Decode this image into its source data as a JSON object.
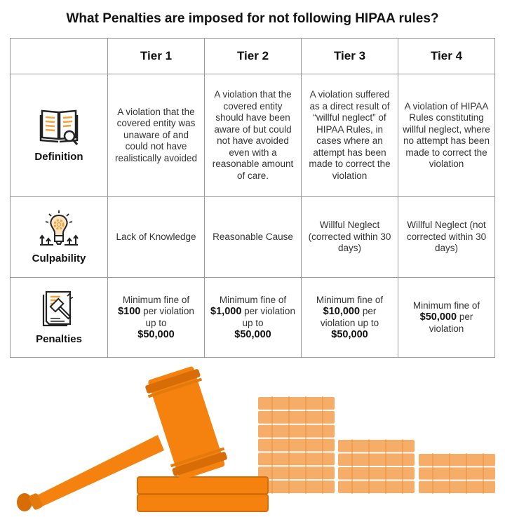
{
  "title": "What Penalties are imposed for not following HIPAA rules?",
  "columns": [
    "Tier 1",
    "Tier 2",
    "Tier 3",
    "Tier 4"
  ],
  "rows": {
    "definition": {
      "label": "Definition",
      "icon": "book-search-icon",
      "cells": [
        "A violation that the covered entity was unaware of and could not have realistically avoided",
        "A violation that the covered entity should have been aware of but could not have avoided even with a reasonable amount of care.",
        "A violation suffered as a direct result of “willful neglect” of HIPAA Rules, in cases where an attempt has been made to correct the violation",
        "A violation of HIPAA Rules constituting willful neglect, where no attempt has been made to correct the violation"
      ]
    },
    "culpability": {
      "label": "Culpability",
      "icon": "lightbulb-gear-icon",
      "cells": [
        "Lack of Knowledge",
        "Reasonable Cause",
        "Willful Neglect (corrected within 30 days)",
        "Willful Neglect (not corrected within 30 days)"
      ]
    },
    "penalties": {
      "label": "Penalties",
      "icon": "document-gavel-icon",
      "cells": [
        {
          "pre": "Minimum fine of",
          "min": "$100",
          "mid": "per violation up to",
          "max": "$50,000"
        },
        {
          "pre": "Minimum fine of",
          "min": "$1,000",
          "mid": "per violation up to",
          "max": "$50,000"
        },
        {
          "pre": "Minimum fine of",
          "min": "$10,000",
          "mid": "per violation up to",
          "max": "$50,000"
        },
        {
          "pre": "Minimum fine of",
          "min": "$50,000",
          "mid": "per violation",
          "max": ""
        }
      ]
    }
  },
  "illustration": {
    "icons": [
      "gavel-icon",
      "coin-stacks-icon"
    ]
  },
  "colors": {
    "accent": "#f5820f",
    "accent_dark": "#d86d08",
    "coins": "#f6ad68",
    "border": "#9a9a9a"
  }
}
